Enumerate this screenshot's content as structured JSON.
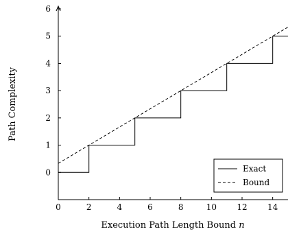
{
  "chart_data": {
    "type": "line",
    "xlabel": "Execution Path Length Bound",
    "xlabel_var": "n",
    "ylabel": "Path Complexity",
    "xlim": [
      0,
      15
    ],
    "ylim": [
      -1,
      6
    ],
    "x_ticks": [
      0,
      2,
      4,
      6,
      8,
      10,
      12,
      14
    ],
    "y_ticks": [
      0,
      1,
      2,
      3,
      4,
      5,
      6
    ],
    "grid": false,
    "legend_position": "bottom-right",
    "series": [
      {
        "name": "Exact",
        "style": "solid",
        "color": "#000000",
        "points": [
          [
            0,
            0
          ],
          [
            2,
            0
          ],
          [
            2,
            1
          ],
          [
            5,
            1
          ],
          [
            5,
            2
          ],
          [
            8,
            2
          ],
          [
            8,
            3
          ],
          [
            11,
            3
          ],
          [
            11,
            4
          ],
          [
            14,
            4
          ],
          [
            14,
            5
          ],
          [
            15,
            5
          ]
        ]
      },
      {
        "name": "Bound",
        "style": "dashed",
        "color": "#000000",
        "points": [
          [
            0,
            0.333
          ],
          [
            15,
            5.333
          ]
        ]
      }
    ]
  }
}
